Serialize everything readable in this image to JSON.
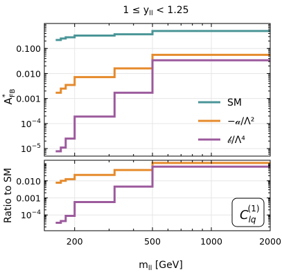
{
  "chart_data": [
    {
      "panel": "top",
      "type": "line",
      "step": true,
      "title": "1 ≤ y_ll < 1.25",
      "xlabel": "m_ll [GeV]",
      "ylabel": "A*_FB",
      "xscale": "log",
      "yscale": "log",
      "xlim": [
        140,
        2000
      ],
      "ylim": [
        5e-06,
        1
      ],
      "x_ticks": [
        200,
        500,
        1000,
        2000
      ],
      "x_tick_labels": [
        "",
        "",
        "",
        ""
      ],
      "y_ticks": [
        1e-05,
        0.0001,
        0.001,
        0.01,
        0.1
      ],
      "y_tick_labels": [
        "10^-5",
        "10^-4",
        "0.001",
        "0.010",
        "0.100"
      ],
      "grid": true,
      "legend_position": "right",
      "bin_edges": [
        160,
        170,
        180,
        200,
        320,
        500,
        2000
      ],
      "series": [
        {
          "name": "SM",
          "color": "#4a9597",
          "values": [
            0.22,
            0.25,
            0.28,
            0.33,
            0.37,
            0.5
          ]
        },
        {
          "name": "−𝒶/Λ²",
          "color": "#e58a2b",
          "values": [
            0.0017,
            0.0025,
            0.0035,
            0.0072,
            0.016,
            0.056
          ]
        },
        {
          "name": "𝒷/Λ⁴",
          "color": "#9c5a9c",
          "values": [
            7.8e-06,
            1.1e-05,
            2.5e-05,
            0.00019,
            0.0017,
            0.034
          ]
        }
      ]
    },
    {
      "panel": "bottom",
      "type": "line",
      "step": true,
      "xlabel": "m_ll [GeV]",
      "ylabel": "Ratio to SM",
      "xscale": "log",
      "yscale": "log",
      "xlim": [
        140,
        2000
      ],
      "ylim": [
        1.2e-05,
        0.16
      ],
      "x_ticks": [
        200,
        500,
        1000,
        2000
      ],
      "x_tick_labels": [
        "200",
        "500",
        "1000",
        "2000"
      ],
      "y_ticks": [
        0.0001,
        0.001,
        0.01
      ],
      "y_tick_labels": [
        "10^-4",
        "0.001",
        "0.010"
      ],
      "grid": true,
      "bin_edges": [
        160,
        170,
        180,
        200,
        320,
        500,
        2000
      ],
      "series": [
        {
          "color": "#e58a2b",
          "values": [
            0.0078,
            0.01,
            0.0125,
            0.022,
            0.043,
            0.112
          ]
        },
        {
          "color": "#9c5a9c",
          "values": [
            3.5e-05,
            4.4e-05,
            8.9e-05,
            0.00057,
            0.0046,
            0.068
          ]
        }
      ],
      "annotation": "C_lq^(1)"
    }
  ]
}
